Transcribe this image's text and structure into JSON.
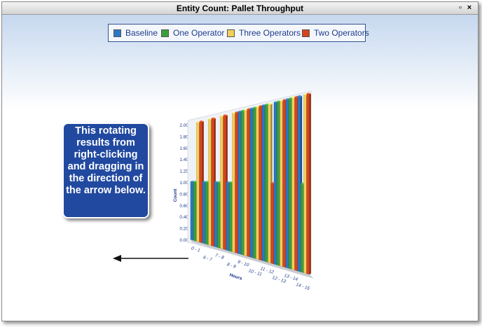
{
  "window": {
    "title": "Entity Count: Pallet Throughput",
    "buttons": {
      "restore": "▫",
      "close": "×"
    }
  },
  "legend": [
    {
      "label": "Baseline",
      "color": "#2a78c4"
    },
    {
      "label": "One Operator",
      "color": "#3aa03a"
    },
    {
      "label": "Three Operators",
      "color": "#f1cf5a"
    },
    {
      "label": "Two Operators",
      "color": "#d8431c"
    }
  ],
  "callout": {
    "text": "This rotating results from right-clicking and dragging in the direction of the arrow below."
  },
  "arrow": {
    "icon": "left-arrow-icon"
  },
  "chart_data": {
    "type": "bar",
    "view": "3d-rotated",
    "ylabel": "Count",
    "xlabel": "Hours",
    "ylim": [
      0,
      2.0
    ],
    "y_ticks": [
      "2.00",
      "1.80",
      "1.60",
      "1.40",
      "1.20",
      "1.00",
      "0.80",
      "0.60",
      "0.40",
      "0.20",
      "0.00"
    ],
    "x_ticks": [
      "0 - 1",
      "6 - 7",
      "7 - 8",
      "8 - 9",
      "9 - 10",
      "10 - 11",
      "11 - 12",
      "12 - 13",
      "13 - 14",
      "14 - 15"
    ],
    "series": [
      {
        "name": "Baseline",
        "values": [
          1,
          1,
          1,
          1,
          2,
          2,
          2,
          2,
          2,
          2
        ]
      },
      {
        "name": "One Operator",
        "values": [
          1,
          1,
          1,
          1,
          2,
          2,
          2,
          2,
          2,
          1
        ]
      },
      {
        "name": "Three Operators",
        "values": [
          2,
          2,
          2,
          2,
          2,
          2,
          2,
          2,
          2,
          2
        ]
      },
      {
        "name": "Two Operators",
        "values": [
          2,
          2,
          2,
          2,
          2,
          2,
          1,
          2,
          2,
          2
        ]
      }
    ]
  }
}
